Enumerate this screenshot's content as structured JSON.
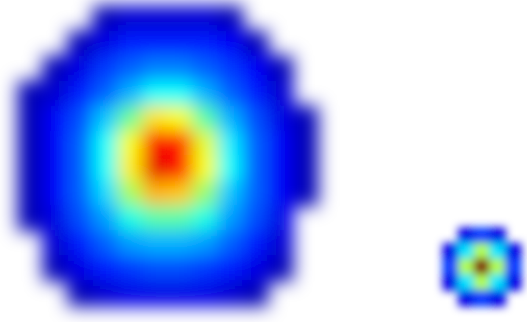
{
  "chart_data": [
    {
      "type": "heatmap",
      "color": "jet",
      "tick_labels": false,
      "color_range": [
        0,
        100
      ],
      "cells": [
        [
          null,
          null,
          null,
          5,
          8,
          8,
          8,
          8,
          5,
          null,
          null,
          null
        ],
        [
          null,
          null,
          5,
          10,
          15,
          15,
          15,
          15,
          12,
          5,
          null,
          null
        ],
        [
          null,
          5,
          10,
          18,
          22,
          25,
          25,
          22,
          18,
          12,
          5,
          null
        ],
        [
          5,
          8,
          15,
          22,
          30,
          38,
          38,
          30,
          22,
          15,
          8,
          null
        ],
        [
          5,
          12,
          20,
          32,
          48,
          65,
          62,
          46,
          30,
          20,
          10,
          5
        ],
        [
          5,
          12,
          22,
          38,
          62,
          88,
          84,
          60,
          36,
          22,
          12,
          5
        ],
        [
          5,
          12,
          22,
          38,
          64,
          90,
          86,
          62,
          38,
          22,
          12,
          5
        ],
        [
          5,
          12,
          22,
          34,
          54,
          70,
          68,
          52,
          32,
          22,
          12,
          5
        ],
        [
          5,
          10,
          20,
          28,
          40,
          46,
          46,
          40,
          28,
          20,
          10,
          null
        ],
        [
          null,
          8,
          15,
          22,
          28,
          30,
          30,
          28,
          22,
          15,
          8,
          null
        ],
        [
          null,
          5,
          10,
          15,
          18,
          20,
          20,
          18,
          15,
          10,
          5,
          null
        ],
        [
          null,
          null,
          5,
          8,
          10,
          10,
          10,
          10,
          8,
          5,
          null,
          null
        ]
      ]
    },
    {
      "type": "heatmap",
      "color": "jet",
      "tick_labels": false,
      "color_range": [
        0,
        100
      ],
      "cells": [
        [
          null,
          10,
          18,
          10,
          null
        ],
        [
          10,
          35,
          55,
          35,
          10
        ],
        [
          18,
          55,
          100,
          55,
          18
        ],
        [
          10,
          35,
          55,
          35,
          10
        ],
        [
          null,
          10,
          18,
          10,
          null
        ]
      ]
    }
  ]
}
